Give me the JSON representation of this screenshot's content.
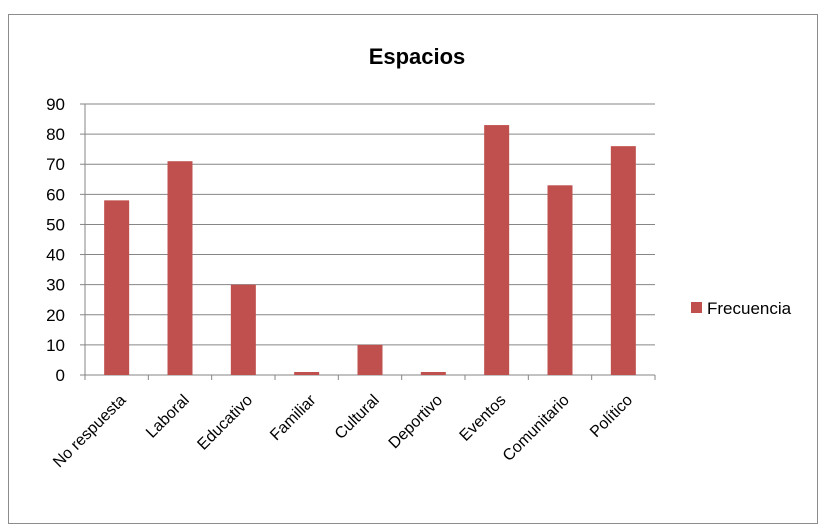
{
  "chart_data": {
    "type": "bar",
    "title": "Espacios",
    "categories": [
      "No respuesta",
      "Laboral",
      "Educativo",
      "Familiar",
      "Cultural",
      "Deportivo",
      "Eventos",
      "Comunitario",
      "Político"
    ],
    "series": [
      {
        "name": "Frecuencia",
        "values": [
          58,
          71,
          30,
          1,
          10,
          1,
          83,
          63,
          76
        ],
        "color": "#c0504d"
      }
    ],
    "yticks": [
      "0",
      "10",
      "20",
      "30",
      "40",
      "50",
      "60",
      "70",
      "80",
      "90"
    ],
    "ylim": [
      0,
      90
    ],
    "xlabel": "",
    "ylabel": "",
    "grid": true,
    "legend_position": "right"
  }
}
